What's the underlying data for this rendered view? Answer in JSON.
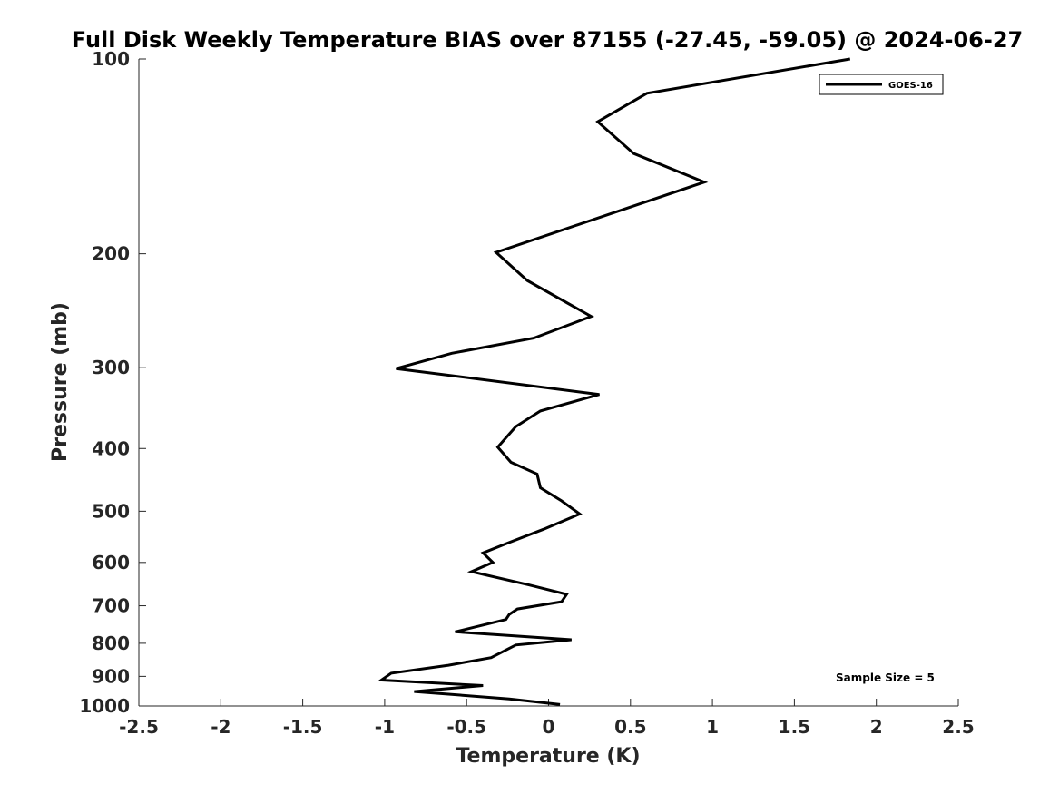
{
  "chart_data": {
    "type": "line",
    "title": "Full Disk Weekly Temperature BIAS over 87155 (-27.45, -59.05) @ 2024-06-27",
    "xlabel": "Temperature (K)",
    "ylabel": "Pressure (mb)",
    "xlim": [
      -2.5,
      2.5
    ],
    "ylim": [
      100,
      1000
    ],
    "y_scale": "log",
    "y_reversed": true,
    "grid": false,
    "legend_position": "top-right",
    "xticks": [
      -2.5,
      -2,
      -1.5,
      -1,
      -0.5,
      0,
      0.5,
      1,
      1.5,
      2,
      2.5
    ],
    "xtick_labels": [
      "-2.5",
      "-2",
      "-1.5",
      "-1",
      "-0.5",
      "0",
      "0.5",
      "1",
      "1.5",
      "2",
      "2.5"
    ],
    "yticks": [
      100,
      200,
      300,
      400,
      500,
      600,
      700,
      800,
      900,
      1000
    ],
    "ytick_labels": [
      "100",
      "200",
      "300",
      "400",
      "500",
      "600",
      "700",
      "800",
      "900",
      "1000"
    ],
    "series": [
      {
        "name": "GOES-16",
        "color": "#000000",
        "x": [
          1.84,
          0.6,
          0.3,
          0.52,
          0.95,
          -0.32,
          -0.13,
          0.26,
          -0.09,
          -0.59,
          -0.93,
          0.31,
          -0.05,
          -0.2,
          -0.31,
          -0.23,
          -0.07,
          -0.05,
          0.08,
          0.19,
          -0.03,
          -0.25,
          -0.4,
          -0.34,
          -0.47,
          -0.12,
          0.11,
          0.08,
          -0.19,
          -0.24,
          -0.26,
          -0.57,
          0.14,
          -0.2,
          -0.27,
          -0.35,
          -0.61,
          -0.96,
          -1.02,
          -0.4,
          -0.82,
          -0.24,
          0.07
        ],
        "y": [
          100,
          113,
          125,
          140,
          155,
          199,
          220,
          250,
          270,
          285,
          301,
          330,
          350,
          370,
          398,
          420,
          438,
          460,
          482,
          505,
          533,
          560,
          580,
          600,
          620,
          650,
          672,
          690,
          708,
          722,
          735,
          768,
          790,
          805,
          822,
          842,
          865,
          890,
          912,
          930,
          950,
          975,
          995
        ]
      }
    ],
    "annotations": [
      "Sample Size = 5"
    ]
  }
}
